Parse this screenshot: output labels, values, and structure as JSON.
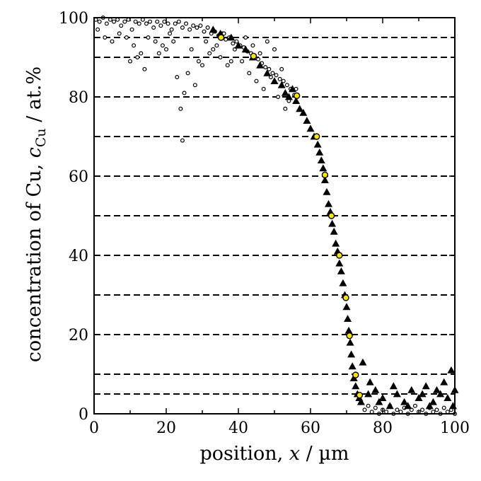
{
  "chart_data": {
    "type": "scatter",
    "xlabel_prefix": "position, ",
    "xlabel_var": "x",
    "xlabel_suffix": " / µm",
    "ylabel_prefix": "concentration of Cu, ",
    "ylabel_var": "c",
    "ylabel_sub": "Cu",
    "ylabel_suffix": " / at.%",
    "xlim": [
      0,
      100
    ],
    "ylim": [
      0,
      100
    ],
    "x_ticks": [
      0,
      20,
      40,
      60,
      80,
      100
    ],
    "y_ticks": [
      0,
      20,
      40,
      60,
      80,
      100
    ],
    "dashed_grid_y": [
      5,
      10,
      20,
      30,
      40,
      50,
      60,
      70,
      80,
      90,
      95
    ],
    "grid": "dashed horizontal",
    "series": [
      {
        "marker": "circle-open",
        "color": "#000000",
        "points": [
          [
            0.5,
            99.5
          ],
          [
            1.5,
            99
          ],
          [
            2.5,
            100
          ],
          [
            3.5,
            98.5
          ],
          [
            4.5,
            99.5
          ],
          [
            5.5,
            99
          ],
          [
            6.5,
            99.5
          ],
          [
            7.5,
            98
          ],
          [
            8.5,
            99
          ],
          [
            9.5,
            99.5
          ],
          [
            10.5,
            97
          ],
          [
            11.5,
            99
          ],
          [
            12.5,
            98.5
          ],
          [
            13.5,
            99.5
          ],
          [
            14.5,
            98.5
          ],
          [
            15.5,
            99
          ],
          [
            16.5,
            97.5
          ],
          [
            17.5,
            99
          ],
          [
            18.5,
            98
          ],
          [
            19.5,
            99
          ],
          [
            20.5,
            98.5
          ],
          [
            21.5,
            97
          ],
          [
            22.5,
            98.5
          ],
          [
            23.5,
            99
          ],
          [
            24.5,
            97.5
          ],
          [
            25.5,
            98.5
          ],
          [
            26.5,
            97
          ],
          [
            27.5,
            98
          ],
          [
            28.5,
            97.5
          ],
          [
            29.5,
            98
          ],
          [
            30.5,
            96.5
          ],
          [
            31.5,
            97.5
          ],
          [
            32.5,
            96
          ],
          [
            33.5,
            96.5
          ],
          [
            34.5,
            95.5
          ],
          [
            35.5,
            96
          ],
          [
            36.5,
            94.5
          ],
          [
            37.5,
            95
          ],
          [
            38.5,
            93.5
          ],
          [
            39.5,
            94
          ],
          [
            40.5,
            93
          ],
          [
            41.5,
            92.5
          ],
          [
            42.5,
            91.5
          ],
          [
            43.5,
            91
          ],
          [
            44.5,
            90.5
          ],
          [
            45.5,
            89.5
          ],
          [
            46.5,
            88.5
          ],
          [
            47.5,
            87.5
          ],
          [
            48.5,
            87
          ],
          [
            49.5,
            86
          ],
          [
            50.5,
            85.5
          ],
          [
            51.5,
            84.5
          ],
          [
            52.5,
            84
          ],
          [
            53.5,
            83
          ],
          [
            54.5,
            82
          ],
          [
            55.5,
            80.5
          ],
          [
            1,
            97
          ],
          [
            3,
            95
          ],
          [
            5,
            94
          ],
          [
            7,
            96
          ],
          [
            9,
            95
          ],
          [
            11,
            93
          ],
          [
            13,
            91
          ],
          [
            15,
            95
          ],
          [
            17,
            94
          ],
          [
            19,
            93
          ],
          [
            21,
            96
          ],
          [
            23,
            85
          ],
          [
            24,
            77
          ],
          [
            24.5,
            69
          ],
          [
            25,
            81
          ],
          [
            26,
            86
          ],
          [
            27,
            92
          ],
          [
            29,
            89
          ],
          [
            31,
            94
          ],
          [
            33,
            92
          ],
          [
            35,
            90
          ],
          [
            37,
            88
          ],
          [
            39,
            92
          ],
          [
            41,
            89
          ],
          [
            43,
            86
          ],
          [
            45,
            84
          ],
          [
            47,
            82
          ],
          [
            49,
            85
          ],
          [
            51,
            80
          ],
          [
            53,
            77
          ],
          [
            10,
            89
          ],
          [
            12,
            90
          ],
          [
            14,
            87
          ],
          [
            18,
            91
          ],
          [
            20,
            92
          ],
          [
            22,
            94
          ],
          [
            28,
            83
          ],
          [
            30,
            88
          ],
          [
            32,
            91
          ],
          [
            34,
            93
          ],
          [
            36,
            96
          ],
          [
            38,
            89
          ],
          [
            42,
            95
          ],
          [
            44,
            93
          ],
          [
            46,
            91
          ],
          [
            48,
            94
          ],
          [
            50,
            92
          ],
          [
            52,
            87
          ],
          [
            54,
            79
          ],
          [
            56,
            82
          ],
          [
            74,
            3
          ],
          [
            75,
            1
          ],
          [
            76,
            2
          ],
          [
            77,
            0.5
          ],
          [
            78,
            1.5
          ],
          [
            79,
            0
          ],
          [
            80,
            1
          ],
          [
            81,
            0.5
          ],
          [
            82,
            2
          ],
          [
            83,
            0
          ],
          [
            84,
            1
          ],
          [
            85,
            0.5
          ],
          [
            86,
            1.5
          ],
          [
            87,
            0
          ],
          [
            88,
            1
          ],
          [
            89,
            2
          ],
          [
            90,
            0.5
          ],
          [
            91,
            1
          ],
          [
            92,
            0
          ],
          [
            93,
            1.5
          ],
          [
            94,
            0.5
          ],
          [
            95,
            1
          ],
          [
            96,
            0
          ],
          [
            97,
            1.5
          ],
          [
            98,
            0.5
          ],
          [
            99,
            1
          ],
          [
            100,
            0
          ]
        ]
      },
      {
        "marker": "triangle",
        "color": "#000000",
        "points": [
          [
            33,
            97
          ],
          [
            35,
            96
          ],
          [
            38,
            95
          ],
          [
            40,
            93
          ],
          [
            42,
            92
          ],
          [
            44,
            90
          ],
          [
            46,
            88
          ],
          [
            48,
            86
          ],
          [
            50,
            84
          ],
          [
            52,
            83
          ],
          [
            53,
            81
          ],
          [
            54,
            80
          ],
          [
            55,
            82
          ],
          [
            56,
            79
          ],
          [
            57,
            77
          ],
          [
            58,
            76
          ],
          [
            59,
            74
          ],
          [
            60,
            72
          ],
          [
            61,
            70
          ],
          [
            62,
            68
          ],
          [
            62.5,
            66
          ],
          [
            63,
            64
          ],
          [
            63.5,
            62
          ],
          [
            64,
            59
          ],
          [
            64.5,
            56
          ],
          [
            65,
            53
          ],
          [
            65.5,
            51
          ],
          [
            66,
            48
          ],
          [
            66.5,
            46
          ],
          [
            67,
            43
          ],
          [
            67.5,
            41
          ],
          [
            68,
            38
          ],
          [
            68.5,
            36
          ],
          [
            69,
            33
          ],
          [
            69.5,
            30
          ],
          [
            70,
            27
          ],
          [
            70.3,
            24
          ],
          [
            70.6,
            21
          ],
          [
            71,
            18
          ],
          [
            71.3,
            15
          ],
          [
            71.6,
            12
          ],
          [
            72,
            9
          ],
          [
            72.5,
            7
          ],
          [
            73,
            5
          ],
          [
            73.5,
            4
          ],
          [
            74,
            3
          ],
          [
            74.5,
            13
          ],
          [
            76,
            5
          ],
          [
            78,
            6
          ],
          [
            80,
            4
          ],
          [
            82,
            2
          ],
          [
            84,
            5
          ],
          [
            86,
            3
          ],
          [
            88,
            6
          ],
          [
            90,
            4
          ],
          [
            92,
            7
          ],
          [
            94,
            3
          ],
          [
            95,
            6
          ],
          [
            96,
            5
          ],
          [
            97,
            8
          ],
          [
            98,
            4
          ],
          [
            99,
            11
          ],
          [
            100,
            6
          ],
          [
            76.5,
            8
          ],
          [
            79,
            3
          ],
          [
            83,
            7
          ],
          [
            87,
            2
          ],
          [
            91,
            5
          ],
          [
            93,
            2
          ],
          [
            99.5,
            2
          ]
        ]
      },
      {
        "marker": "circle-yellow",
        "color": "#ffe600",
        "points": [
          [
            35.2,
            95
          ],
          [
            44.2,
            90.3
          ],
          [
            56.2,
            80.3
          ],
          [
            61.7,
            70
          ],
          [
            64,
            60.3
          ],
          [
            65.8,
            50
          ],
          [
            68,
            40
          ],
          [
            69.8,
            29.3
          ],
          [
            70.8,
            19.7
          ],
          [
            72.5,
            9.8
          ],
          [
            73.6,
            4.7
          ]
        ]
      }
    ]
  }
}
